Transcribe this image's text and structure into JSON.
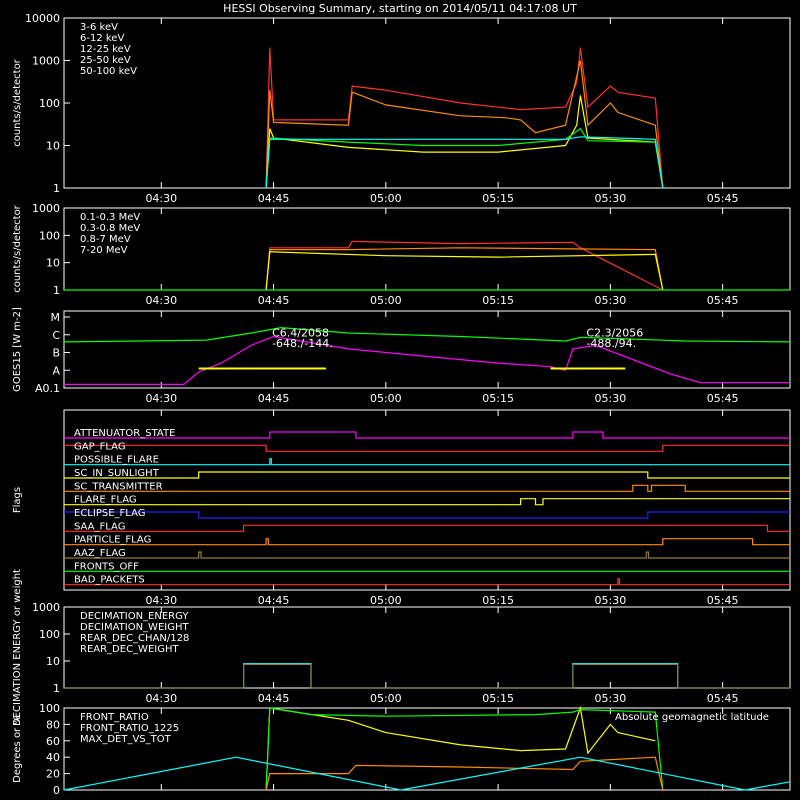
{
  "title": "HESSI Observing Summary, starting on 2014/05/11 04:17:08 UT",
  "time_ticks": [
    "04:30",
    "04:45",
    "05:00",
    "05:15",
    "05:30",
    "05:45"
  ],
  "chart_data": [
    {
      "type": "line",
      "ylabel": "counts/s/detector",
      "yscale": "log",
      "ylim": [
        1,
        10000
      ],
      "yticks": [
        "1",
        "10",
        "100",
        "1000",
        "10000"
      ],
      "legend_placement": "top-left",
      "series": [
        {
          "name": "3-6 keV",
          "color": "#ff3030",
          "x": [
            "04:44",
            "04:44.5",
            "04:45",
            "04:55",
            "04:55.5",
            "05:00",
            "05:10",
            "05:18",
            "05:24",
            "05:25.5",
            "05:26",
            "05:27",
            "05:30",
            "05:31",
            "05:36",
            "05:37"
          ],
          "y": [
            1,
            2000,
            40,
            40,
            250,
            200,
            100,
            70,
            80,
            300,
            2000,
            80,
            250,
            180,
            130,
            1
          ]
        },
        {
          "name": "6-12 keV",
          "color": "#ff8c00",
          "x": [
            "04:44",
            "04:44.5",
            "04:45",
            "04:55",
            "04:55.5",
            "05:00",
            "05:10",
            "05:16",
            "05:18",
            "05:20",
            "05:24",
            "05:26",
            "05:27",
            "05:30",
            "05:31",
            "05:36",
            "05:37"
          ],
          "y": [
            1,
            200,
            35,
            30,
            180,
            90,
            50,
            45,
            40,
            20,
            30,
            1000,
            30,
            100,
            60,
            30,
            1
          ]
        },
        {
          "name": "12-25 keV",
          "color": "#ffff00",
          "x": [
            "04:44",
            "04:44.5",
            "04:45",
            "04:55",
            "05:05",
            "05:15",
            "05:24",
            "05:25.5",
            "05:26",
            "05:27",
            "05:36",
            "05:37"
          ],
          "y": [
            1,
            25,
            15,
            9,
            7,
            7,
            10,
            30,
            150,
            15,
            12,
            1
          ]
        },
        {
          "name": "25-50 keV",
          "color": "#00ff00",
          "x": [
            "04:44",
            "04:44.5",
            "04:55",
            "05:05",
            "05:15",
            "05:24",
            "05:26",
            "05:27",
            "05:36",
            "05:37"
          ],
          "y": [
            1,
            15,
            12,
            10,
            10,
            14,
            25,
            13,
            12,
            1
          ]
        },
        {
          "name": "50-100 keV",
          "color": "#00ffff",
          "x": [
            "04:44",
            "04:44.5",
            "04:55",
            "05:05",
            "05:15",
            "05:24",
            "05:26",
            "05:36",
            "05:37"
          ],
          "y": [
            1,
            14,
            14,
            14,
            14,
            14,
            16,
            14,
            1
          ]
        }
      ]
    },
    {
      "type": "line",
      "ylabel": "counts/s/detector",
      "yscale": "log",
      "ylim": [
        1,
        1000
      ],
      "yticks": [
        "1",
        "10",
        "100",
        "1000"
      ],
      "legend_placement": "top-left",
      "series": [
        {
          "name": "0.1-0.3 MeV",
          "color": "#ff3030",
          "x": [
            "04:44",
            "04:44.5",
            "04:55",
            "04:55.5",
            "05:10",
            "05:25",
            "05:26",
            "05:37"
          ],
          "y": [
            1,
            35,
            35,
            60,
            50,
            55,
            35,
            1
          ]
        },
        {
          "name": "0.3-0.8 MeV",
          "color": "#ff8c00",
          "x": [
            "04:44",
            "04:44.5",
            "04:55",
            "05:10",
            "05:25",
            "05:36",
            "05:37"
          ],
          "y": [
            1,
            30,
            30,
            35,
            32,
            30,
            1
          ]
        },
        {
          "name": "0.8-7 MeV",
          "color": "#ffff00",
          "x": [
            "04:44",
            "04:44.5",
            "05:00",
            "05:15",
            "05:36",
            "05:37"
          ],
          "y": [
            1,
            25,
            18,
            16,
            20,
            1
          ]
        },
        {
          "name": "7-20 MeV",
          "color": "#00ff00",
          "x": [
            "04:17",
            "05:54"
          ],
          "y": [
            1,
            1
          ]
        }
      ]
    },
    {
      "type": "line",
      "ylabel": "GOES15 [W m-2]",
      "yticks": [
        "A0.1",
        "A",
        "B",
        "C",
        "M"
      ],
      "annotations": [
        {
          "text": "C6.4/2058",
          "x": "04:44",
          "level": 2.9
        },
        {
          "text": "-648./-144.",
          "x": "04:44",
          "level": 2.3
        },
        {
          "text": "C2.3/2056",
          "x": "05:26",
          "level": 2.9
        },
        {
          "text": "-488./94.",
          "x": "05:26",
          "level": 2.3
        }
      ],
      "series": [
        {
          "color": "#00ff00",
          "x": [
            "04:17",
            "04:36",
            "04:42",
            "04:46",
            "04:55",
            "05:10",
            "05:24",
            "05:26",
            "05:30",
            "05:40",
            "05:54"
          ],
          "y": [
            2.6,
            2.7,
            3.1,
            3.4,
            3.1,
            2.9,
            2.65,
            2.85,
            2.8,
            2.65,
            2.6
          ]
        },
        {
          "color": "#ff00ff",
          "x": [
            "04:17",
            "04:33",
            "04:35",
            "04:38",
            "04:42",
            "04:45",
            "04:55",
            "05:05",
            "05:15",
            "05:22",
            "05:24",
            "05:25",
            "05:28",
            "05:33",
            "05:38",
            "05:42",
            "05:54"
          ],
          "y": [
            0.2,
            0.2,
            0.9,
            1.4,
            2.4,
            2.9,
            2.2,
            1.8,
            1.4,
            1.2,
            1.0,
            2.2,
            2.4,
            1.6,
            0.8,
            0.3,
            0.3
          ]
        },
        {
          "color": "#ffff00",
          "x": [
            "04:35",
            "04:52"
          ],
          "y": [
            1.1,
            1.1
          ]
        },
        {
          "color": "#ffff00",
          "x": [
            "05:22",
            "05:32"
          ],
          "y": [
            1.1,
            1.1
          ]
        }
      ]
    },
    {
      "type": "line",
      "ylabel": "Flags",
      "flags": [
        {
          "name": "ATTENUATOR_STATE",
          "color": "#ff00ff",
          "segments": [
            [
              "04:17",
              0
            ],
            [
              "04:44.5",
              1
            ],
            [
              "04:56",
              0
            ],
            [
              "05:25",
              1
            ],
            [
              "05:29",
              0
            ],
            [
              "05:54",
              0
            ]
          ]
        },
        {
          "name": "GAP_FLAG",
          "color": "#ff3030",
          "segments": [
            [
              "04:17",
              1
            ],
            [
              "04:44",
              0
            ],
            [
              "05:37",
              1
            ],
            [
              "05:54",
              1
            ]
          ]
        },
        {
          "name": "POSSIBLE_FLARE",
          "color": "#00ffff",
          "segments": [
            [
              "04:17",
              0
            ],
            [
              "04:44.5",
              1
            ],
            [
              "04:44.7",
              0
            ],
            [
              "05:54",
              0
            ]
          ]
        },
        {
          "name": "SC_IN_SUNLIGHT",
          "color": "#ffff00",
          "segments": [
            [
              "04:17",
              0
            ],
            [
              "04:35",
              1
            ],
            [
              "05:35",
              0
            ],
            [
              "05:54",
              0
            ]
          ]
        },
        {
          "name": "SC_TRANSMITTER",
          "color": "#ff8c00",
          "segments": [
            [
              "04:17",
              0
            ],
            [
              "05:33",
              1
            ],
            [
              "05:35",
              0
            ],
            [
              "05:35.5",
              1
            ],
            [
              "05:40",
              0
            ],
            [
              "05:54",
              0
            ]
          ]
        },
        {
          "name": "FLARE_FLAG",
          "color": "#ffff00",
          "segments": [
            [
              "04:17",
              0
            ],
            [
              "05:18",
              1
            ],
            [
              "05:20",
              0
            ],
            [
              "05:21",
              1
            ],
            [
              "05:54",
              1
            ]
          ]
        },
        {
          "name": "ECLIPSE_FLAG",
          "color": "#2020ff",
          "segments": [
            [
              "04:17",
              1
            ],
            [
              "04:35",
              0
            ],
            [
              "05:35",
              1
            ],
            [
              "05:54",
              1
            ]
          ]
        },
        {
          "name": "SAA_FLAG",
          "color": "#ff3030",
          "segments": [
            [
              "04:17",
              0
            ],
            [
              "04:41",
              1
            ],
            [
              "05:51",
              0
            ],
            [
              "05:54",
              0
            ]
          ]
        },
        {
          "name": "PARTICLE_FLAG",
          "color": "#ff8c00",
          "segments": [
            [
              "04:17",
              0
            ],
            [
              "04:44",
              1
            ],
            [
              "04:44.3",
              0
            ],
            [
              "05:37",
              1
            ],
            [
              "05:49",
              0
            ],
            [
              "05:54",
              0
            ]
          ]
        },
        {
          "name": "AAZ_FLAG",
          "color": "#8b7d3a",
          "segments": [
            [
              "04:17",
              0
            ],
            [
              "04:35",
              1
            ],
            [
              "04:35.3",
              0
            ],
            [
              "05:34.8",
              1
            ],
            [
              "05:35.1",
              0
            ],
            [
              "05:54",
              0
            ]
          ]
        },
        {
          "name": "FRONTS_OFF",
          "color": "#00ff00",
          "segments": [
            [
              "04:17",
              0
            ],
            [
              "05:54",
              0
            ]
          ]
        },
        {
          "name": "BAD_PACKETS",
          "color": "#ff3030",
          "segments": [
            [
              "04:17",
              0
            ],
            [
              "05:31",
              1
            ],
            [
              "05:31.2",
              0
            ],
            [
              "05:54",
              0
            ]
          ]
        }
      ]
    },
    {
      "type": "line",
      "ylabel": "DECIMATION ENERGY or weight",
      "yscale": "log",
      "ylim": [
        1,
        1000
      ],
      "yticks": [
        "1",
        "10",
        "100",
        "1000"
      ],
      "legend_placement": "top-left",
      "series": [
        {
          "name": "DECIMATION_ENERGY",
          "color": "#00ff00",
          "x": [],
          "y": []
        },
        {
          "name": "DECIMATION_WEIGHT",
          "color": "#ff3030",
          "x": [],
          "y": []
        },
        {
          "name": "REAR_DEC_CHAN/128",
          "color": "#00ffff",
          "x": [
            "04:17",
            "04:41",
            "04:41",
            "04:50",
            "04:50",
            "05:25",
            "05:25",
            "05:39",
            "05:39",
            "05:54"
          ],
          "y": [
            1,
            1,
            8,
            8,
            1,
            1,
            8,
            8,
            1,
            1
          ]
        },
        {
          "name": "REAR_DEC_WEIGHT",
          "color": "#8b7d3a",
          "x": [
            "04:17",
            "04:41",
            "04:41",
            "04:50",
            "04:50",
            "05:25",
            "05:25",
            "05:39",
            "05:39",
            "05:54"
          ],
          "y": [
            1,
            1,
            7.5,
            7.5,
            1,
            1,
            7.5,
            7.5,
            1,
            1
          ]
        }
      ]
    },
    {
      "type": "line",
      "ylabel": "Degrees or %",
      "ylim": [
        0,
        100
      ],
      "yticks": [
        "0",
        "20",
        "40",
        "60",
        "80",
        "100"
      ],
      "legend_placement": "top-left",
      "series": [
        {
          "name": "FRONT_RATIO",
          "color": "#ffff00",
          "x": [
            "04:44",
            "04:44.5",
            "04:55",
            "05:00",
            "05:10",
            "05:18",
            "05:24",
            "05:26",
            "05:27",
            "05:30",
            "05:31",
            "05:36"
          ],
          "y": [
            0,
            100,
            85,
            70,
            55,
            48,
            50,
            100,
            45,
            80,
            70,
            60
          ]
        },
        {
          "name": "FRONT_RATIO_1225",
          "color": "#00ff00",
          "x": [
            "04:44",
            "04:44.5",
            "04:50",
            "05:00",
            "05:20",
            "05:25",
            "05:26",
            "05:36",
            "05:37"
          ],
          "y": [
            0,
            100,
            92,
            90,
            92,
            95,
            98,
            95,
            0
          ]
        },
        {
          "name": "MAX_DET_VS_TOT",
          "color": "#ff8c00",
          "x": [
            "04:44",
            "04:44.5",
            "04:55",
            "04:56",
            "05:10",
            "05:25",
            "05:26",
            "05:36",
            "05:37"
          ],
          "y": [
            0,
            20,
            20,
            30,
            28,
            25,
            35,
            40,
            0
          ]
        },
        {
          "name": "Absolute geomagnetic latitude",
          "color": "#00ffff",
          "x": [
            "04:17",
            "04:40",
            "05:02",
            "05:26",
            "05:48",
            "05:54"
          ],
          "y": [
            0,
            40,
            0,
            40,
            0,
            10
          ]
        }
      ]
    }
  ]
}
